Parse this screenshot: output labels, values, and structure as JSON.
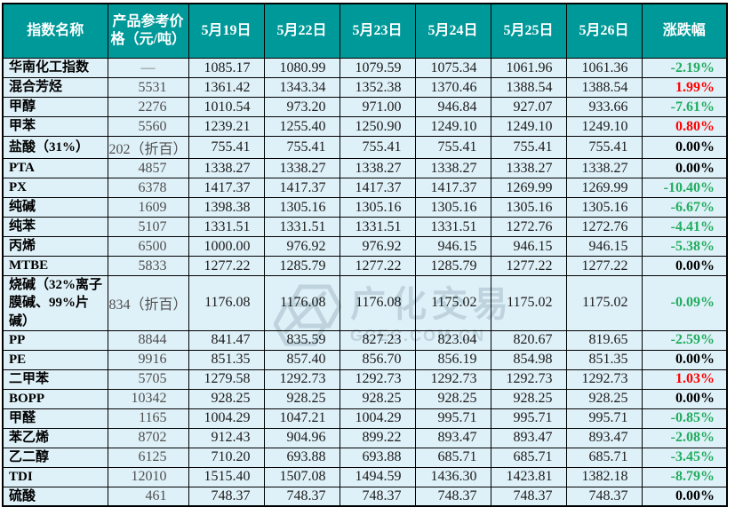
{
  "colors": {
    "header_bg": "#009999",
    "row_bg": "#DFF1F8",
    "border": "#000000",
    "up_red": "#FF0000",
    "down_green": "#22AC5E",
    "flat_black": "#000000"
  },
  "watermark": {
    "logo": "hexagon-logo",
    "text": "广化交易",
    "domain": "GCEC.COM.CN"
  },
  "table": {
    "columns": [
      "指数名称",
      "产品参考价格（元/吨）",
      "5月19日",
      "5月22日",
      "5月23日",
      "5月24日",
      "5月25日",
      "5月26日",
      "涨跌幅"
    ],
    "rows": [
      {
        "name": "华南化工指数",
        "ref": "—",
        "values": [
          "1085.17",
          "1080.99",
          "1079.59",
          "1075.34",
          "1061.96",
          "1061.36"
        ],
        "change": "-2.19%",
        "dir": "down"
      },
      {
        "name": "混合芳烃",
        "ref": "5531",
        "values": [
          "1361.42",
          "1343.34",
          "1352.38",
          "1370.46",
          "1388.54",
          "1388.54"
        ],
        "change": "1.99%",
        "dir": "up"
      },
      {
        "name": "甲醇",
        "ref": "2276",
        "values": [
          "1010.54",
          "973.20",
          "971.00",
          "946.84",
          "927.07",
          "933.66"
        ],
        "change": "-7.61%",
        "dir": "down"
      },
      {
        "name": "甲苯",
        "ref": "5560",
        "values": [
          "1239.21",
          "1255.40",
          "1250.90",
          "1249.10",
          "1249.10",
          "1249.10"
        ],
        "change": "0.80%",
        "dir": "up"
      },
      {
        "name": "盐酸（31%）",
        "ref": "202（折百）",
        "values": [
          "755.41",
          "755.41",
          "755.41",
          "755.41",
          "755.41",
          "755.41"
        ],
        "change": "0.00%",
        "dir": "flat"
      },
      {
        "name": "PTA",
        "ref": "4857",
        "values": [
          "1338.27",
          "1338.27",
          "1338.27",
          "1338.27",
          "1338.27",
          "1338.27"
        ],
        "change": "0.00%",
        "dir": "flat"
      },
      {
        "name": "PX",
        "ref": "6378",
        "values": [
          "1417.37",
          "1417.37",
          "1417.37",
          "1417.37",
          "1269.99",
          "1269.99"
        ],
        "change": "-10.40%",
        "dir": "down"
      },
      {
        "name": "纯碱",
        "ref": "1609",
        "values": [
          "1398.38",
          "1305.16",
          "1305.16",
          "1305.16",
          "1305.16",
          "1305.16"
        ],
        "change": "-6.67%",
        "dir": "down"
      },
      {
        "name": "纯苯",
        "ref": "5107",
        "values": [
          "1331.51",
          "1331.51",
          "1331.51",
          "1331.51",
          "1272.76",
          "1272.76"
        ],
        "change": "-4.41%",
        "dir": "down"
      },
      {
        "name": "丙烯",
        "ref": "6500",
        "values": [
          "1000.00",
          "976.92",
          "976.92",
          "946.15",
          "946.15",
          "946.15"
        ],
        "change": "-5.38%",
        "dir": "down"
      },
      {
        "name": "MTBE",
        "ref": "5833",
        "values": [
          "1277.22",
          "1285.79",
          "1277.22",
          "1285.79",
          "1277.22",
          "1277.22"
        ],
        "change": "0.00%",
        "dir": "flat"
      },
      {
        "name": "烧碱（32%离子膜碱、99%片碱）",
        "ref": "834（折百）",
        "values": [
          "1176.08",
          "1176.08",
          "1176.08",
          "1175.02",
          "1175.02",
          "1175.02"
        ],
        "change": "-0.09%",
        "dir": "down"
      },
      {
        "name": "PP",
        "ref": "8844",
        "values": [
          "841.47",
          "835.59",
          "827.23",
          "823.04",
          "820.67",
          "819.65"
        ],
        "change": "-2.59%",
        "dir": "down"
      },
      {
        "name": "PE",
        "ref": "9916",
        "values": [
          "851.35",
          "857.40",
          "856.70",
          "856.19",
          "854.98",
          "851.35"
        ],
        "change": "0.00%",
        "dir": "flat"
      },
      {
        "name": "二甲苯",
        "ref": "5705",
        "values": [
          "1279.58",
          "1292.73",
          "1292.73",
          "1292.73",
          "1292.73",
          "1292.73"
        ],
        "change": "1.03%",
        "dir": "up"
      },
      {
        "name": "BOPP",
        "ref": "10342",
        "values": [
          "928.25",
          "928.25",
          "928.25",
          "928.25",
          "928.25",
          "928.25"
        ],
        "change": "0.00%",
        "dir": "flat"
      },
      {
        "name": "甲醛",
        "ref": "1165",
        "values": [
          "1004.29",
          "1047.21",
          "1004.29",
          "995.71",
          "995.71",
          "995.71"
        ],
        "change": "-0.85%",
        "dir": "down"
      },
      {
        "name": "苯乙烯",
        "ref": "8702",
        "values": [
          "912.43",
          "904.96",
          "899.22",
          "893.47",
          "893.47",
          "893.47"
        ],
        "change": "-2.08%",
        "dir": "down"
      },
      {
        "name": "乙二醇",
        "ref": "6125",
        "values": [
          "710.20",
          "693.88",
          "693.88",
          "685.71",
          "685.71",
          "685.71"
        ],
        "change": "-3.45%",
        "dir": "down"
      },
      {
        "name": "TDI",
        "ref": "12010",
        "values": [
          "1515.40",
          "1507.08",
          "1494.59",
          "1436.30",
          "1423.81",
          "1382.18"
        ],
        "change": "-8.79%",
        "dir": "down"
      },
      {
        "name": "硫酸",
        "ref": "461",
        "values": [
          "748.37",
          "748.37",
          "748.37",
          "748.37",
          "748.37",
          "748.37"
        ],
        "change": "0.00%",
        "dir": "flat"
      }
    ]
  }
}
